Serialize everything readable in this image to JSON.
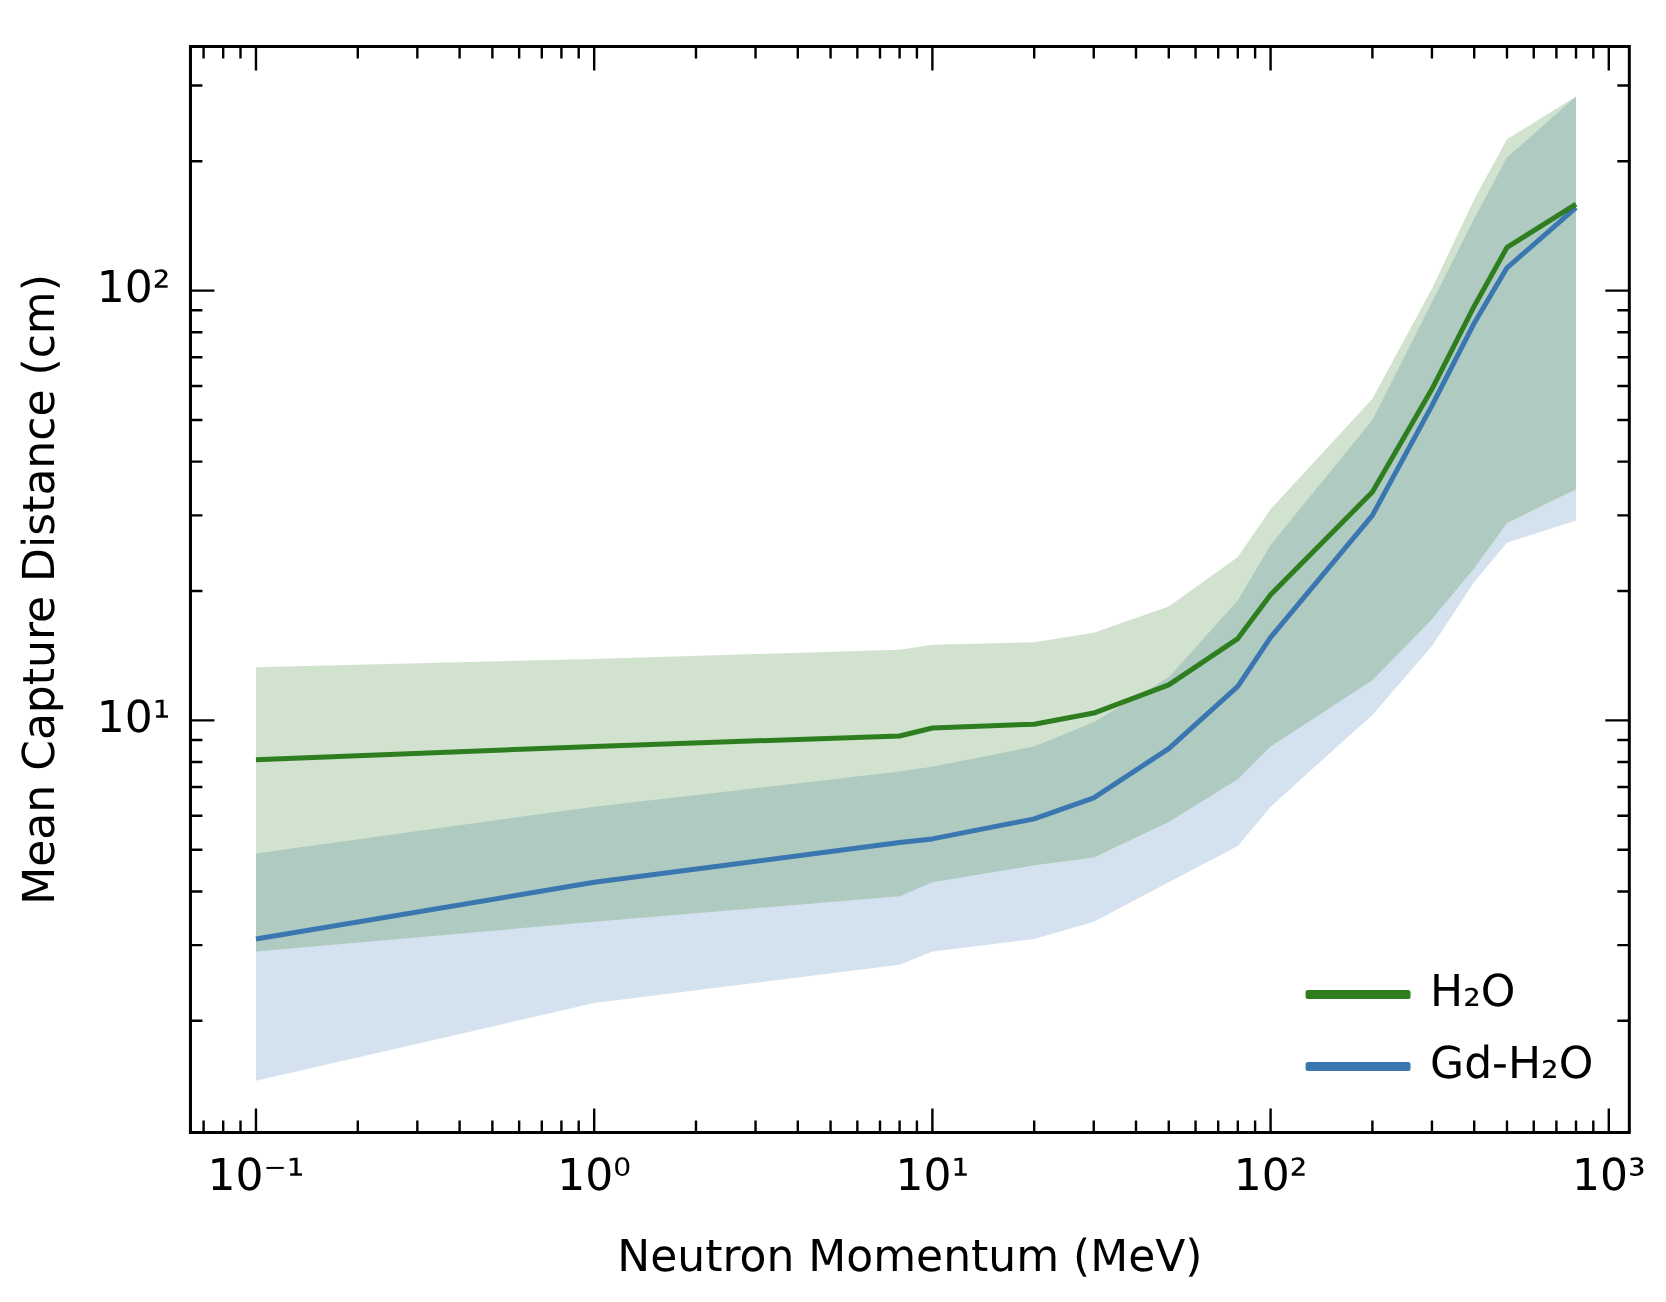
{
  "chart_data": {
    "type": "line",
    "xlabel": "Neutron Momentum (MeV)",
    "ylabel": "Mean Capture Distance (cm)",
    "log": "xy",
    "legend": "bottom right",
    "grid": false,
    "xlim": [
      0.064,
      1150
    ],
    "ylim": [
      1.1,
      370
    ],
    "x": [
      0.1,
      1,
      8,
      10,
      20,
      30,
      50,
      80,
      100,
      200,
      300,
      400,
      500,
      800
    ],
    "xticks": [
      {
        "value": 0.07,
        "label": null
      },
      {
        "value": 0.08,
        "label": null
      },
      {
        "value": 0.09,
        "label": null
      },
      {
        "value": 0.1,
        "label": "10⁻¹"
      },
      {
        "value": 0.2,
        "label": null
      },
      {
        "value": 0.3,
        "label": null
      },
      {
        "value": 0.4,
        "label": null
      },
      {
        "value": 0.5,
        "label": null
      },
      {
        "value": 0.6,
        "label": null
      },
      {
        "value": 0.7,
        "label": null
      },
      {
        "value": 0.8,
        "label": null
      },
      {
        "value": 0.9,
        "label": null
      },
      {
        "value": 1,
        "label": "10⁰"
      },
      {
        "value": 2,
        "label": null
      },
      {
        "value": 3,
        "label": null
      },
      {
        "value": 4,
        "label": null
      },
      {
        "value": 5,
        "label": null
      },
      {
        "value": 6,
        "label": null
      },
      {
        "value": 7,
        "label": null
      },
      {
        "value": 8,
        "label": null
      },
      {
        "value": 9,
        "label": null
      },
      {
        "value": 10,
        "label": "10¹"
      },
      {
        "value": 20,
        "label": null
      },
      {
        "value": 30,
        "label": null
      },
      {
        "value": 40,
        "label": null
      },
      {
        "value": 50,
        "label": null
      },
      {
        "value": 60,
        "label": null
      },
      {
        "value": 70,
        "label": null
      },
      {
        "value": 80,
        "label": null
      },
      {
        "value": 90,
        "label": null
      },
      {
        "value": 100,
        "label": "10²"
      },
      {
        "value": 200,
        "label": null
      },
      {
        "value": 300,
        "label": null
      },
      {
        "value": 400,
        "label": null
      },
      {
        "value": 500,
        "label": null
      },
      {
        "value": 600,
        "label": null
      },
      {
        "value": 700,
        "label": null
      },
      {
        "value": 800,
        "label": null
      },
      {
        "value": 900,
        "label": null
      },
      {
        "value": 1000,
        "label": "10³"
      }
    ],
    "yticks": [
      {
        "value": 2,
        "label": null
      },
      {
        "value": 3,
        "label": null
      },
      {
        "value": 4,
        "label": null
      },
      {
        "value": 5,
        "label": null
      },
      {
        "value": 6,
        "label": null
      },
      {
        "value": 7,
        "label": null
      },
      {
        "value": 8,
        "label": null
      },
      {
        "value": 9,
        "label": null
      },
      {
        "value": 10,
        "label": "10¹"
      },
      {
        "value": 20,
        "label": null
      },
      {
        "value": 30,
        "label": null
      },
      {
        "value": 40,
        "label": null
      },
      {
        "value": 50,
        "label": null
      },
      {
        "value": 60,
        "label": null
      },
      {
        "value": 70,
        "label": null
      },
      {
        "value": 80,
        "label": null
      },
      {
        "value": 90,
        "label": null
      },
      {
        "value": 100,
        "label": "10²"
      },
      {
        "value": 200,
        "label": null
      },
      {
        "value": 300,
        "label": null
      }
    ],
    "series": [
      {
        "name": "H₂O",
        "color": "#2e7d1f",
        "values": [
          8.1,
          8.7,
          9.2,
          9.6,
          9.8,
          10.4,
          12.1,
          15.5,
          19.6,
          34,
          59,
          92,
          126,
          159
        ],
        "lower": [
          2.9,
          3.4,
          3.9,
          4.2,
          4.6,
          4.8,
          5.8,
          7.3,
          8.7,
          12.4,
          17.2,
          22.6,
          28.8,
          34.5
        ],
        "upper": [
          13.3,
          13.9,
          14.6,
          15,
          15.2,
          16,
          18.4,
          24,
          31,
          56,
          101,
          163,
          225,
          283
        ]
      },
      {
        "name": "Gd-H₂O",
        "color": "#3a76b0",
        "values": [
          3.1,
          4.2,
          5.2,
          5.3,
          5.9,
          6.6,
          8.6,
          12,
          15.6,
          30,
          54,
          84,
          113,
          156
        ],
        "lower": [
          1.45,
          2.2,
          2.7,
          2.9,
          3.1,
          3.4,
          4.2,
          5.1,
          6.3,
          10.3,
          14.9,
          21,
          25.9,
          29.2
        ],
        "upper": [
          4.9,
          6.3,
          7.6,
          7.8,
          8.7,
          9.9,
          12.6,
          19,
          25.6,
          50,
          94,
          147,
          204,
          283
        ]
      }
    ]
  }
}
